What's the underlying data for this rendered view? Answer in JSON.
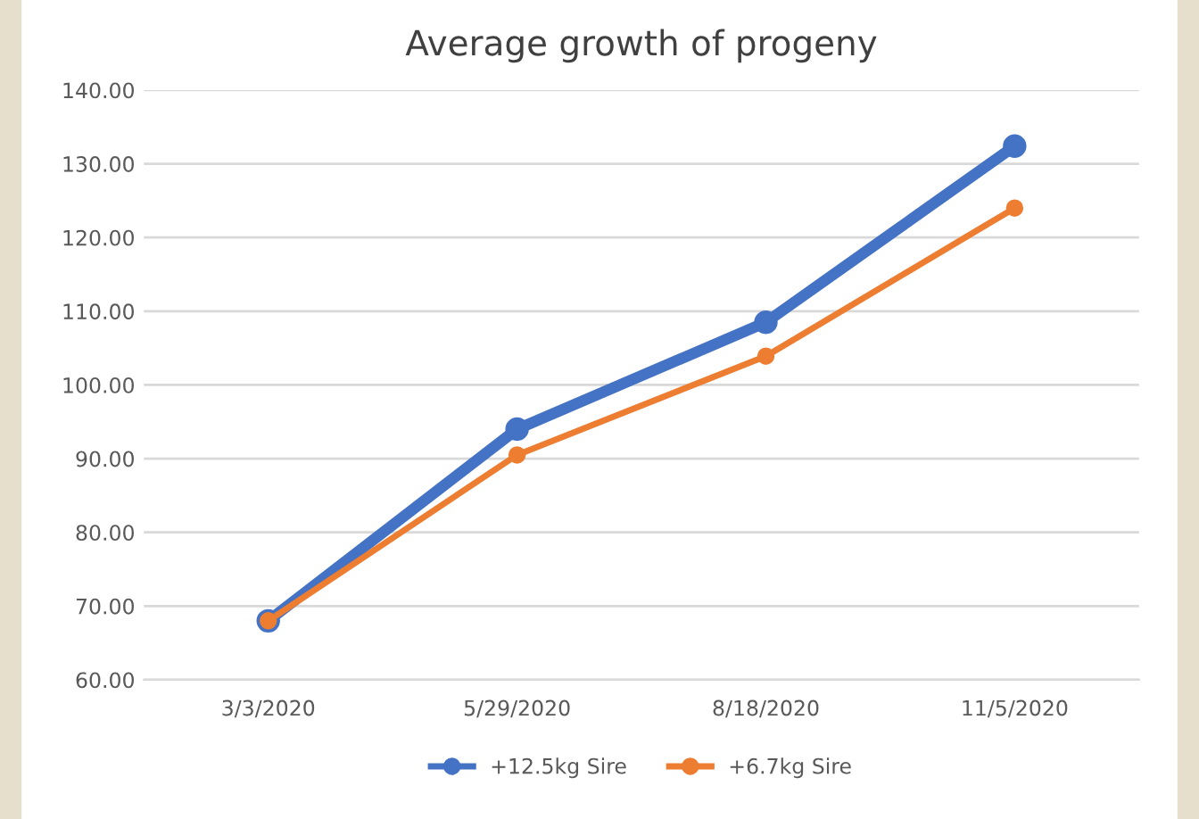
{
  "chart_data": {
    "type": "line",
    "title": "Average growth of progeny",
    "categories": [
      "3/3/2020",
      "5/29/2020",
      "8/18/2020",
      "11/5/2020"
    ],
    "series": [
      {
        "name": "+12.5kg Sire",
        "color": "#4472c4",
        "values": [
          68.0,
          94.0,
          108.5,
          132.4
        ]
      },
      {
        "name": "+6.7kg Sire",
        "color": "#ed7d31",
        "values": [
          68.0,
          90.5,
          103.9,
          124.0
        ]
      }
    ],
    "ylim": [
      60,
      140
    ],
    "yticks": [
      {
        "value": 60,
        "label": "60.00"
      },
      {
        "value": 70,
        "label": "70.00"
      },
      {
        "value": 80,
        "label": "80.00"
      },
      {
        "value": 90,
        "label": "90.00"
      },
      {
        "value": 100,
        "label": "100.00"
      },
      {
        "value": 110,
        "label": "110.00"
      },
      {
        "value": 120,
        "label": "120.00"
      },
      {
        "value": 130,
        "label": "130.00"
      },
      {
        "value": 140,
        "label": "140.00"
      }
    ],
    "grid": "y",
    "legend": "bottom",
    "marker": "circle",
    "line_style": "solid"
  }
}
